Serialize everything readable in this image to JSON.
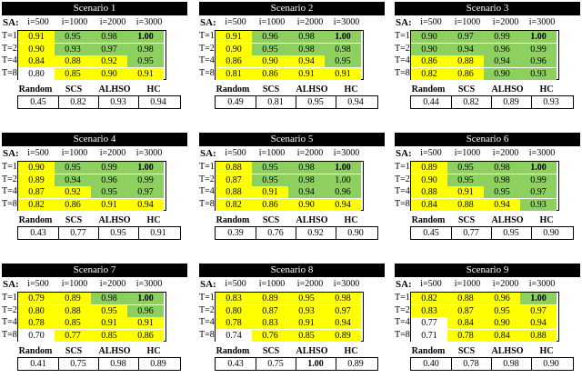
{
  "colors": {
    "green": "#8dd05f",
    "yellow": "#ffff00",
    "white": "#ffffff"
  },
  "sa_label": "SA:",
  "iter_headers": [
    "i=500",
    "i=1000",
    "i=2000",
    "i=3000"
  ],
  "row_labels": [
    "T=1",
    "T=2",
    "T=4",
    "T=8"
  ],
  "summary_headers": [
    "Random",
    "SCS",
    "ALHSO",
    "HC"
  ],
  "scenarios": [
    {
      "title": "Scenario 1",
      "grid": [
        [
          "0.91",
          "0.95",
          "0.98",
          "1.00"
        ],
        [
          "0.90",
          "0.93",
          "0.97",
          "0.98"
        ],
        [
          "0.84",
          "0.88",
          "0.92",
          "0.95"
        ],
        [
          "0.80",
          "0.85",
          "0.90",
          "0.91"
        ]
      ],
      "colors": [
        [
          "y",
          "g",
          "g",
          "g"
        ],
        [
          "y",
          "g",
          "g",
          "g"
        ],
        [
          "y",
          "y",
          "y",
          "g"
        ],
        [
          "w",
          "y",
          "y",
          "y"
        ]
      ],
      "bold": [
        [
          false,
          false,
          false,
          true
        ],
        [
          false,
          false,
          false,
          false
        ],
        [
          false,
          false,
          false,
          false
        ],
        [
          false,
          false,
          false,
          false
        ]
      ],
      "summary": [
        "0.45",
        "0.82",
        "0.93",
        "0.94"
      ],
      "summary_bold": [
        false,
        false,
        false,
        false
      ]
    },
    {
      "title": "Scenario 2",
      "grid": [
        [
          "0.91",
          "0.96",
          "0.98",
          "1.00"
        ],
        [
          "0.90",
          "0.95",
          "0.98",
          "0.98"
        ],
        [
          "0.86",
          "0.90",
          "0.94",
          "0.95"
        ],
        [
          "0.81",
          "0.86",
          "0.91",
          "0.91"
        ]
      ],
      "colors": [
        [
          "y",
          "g",
          "g",
          "g"
        ],
        [
          "y",
          "g",
          "g",
          "g"
        ],
        [
          "y",
          "y",
          "y",
          "g"
        ],
        [
          "y",
          "y",
          "y",
          "y"
        ]
      ],
      "bold": [
        [
          false,
          false,
          false,
          true
        ],
        [
          false,
          false,
          false,
          false
        ],
        [
          false,
          false,
          false,
          false
        ],
        [
          false,
          false,
          false,
          false
        ]
      ],
      "summary": [
        "0.49",
        "0.81",
        "0.95",
        "0.94"
      ],
      "summary_bold": [
        false,
        false,
        false,
        false
      ]
    },
    {
      "title": "Scenario 3",
      "grid": [
        [
          "0.90",
          "0.97",
          "0.99",
          "1.00"
        ],
        [
          "0.90",
          "0.94",
          "0.96",
          "0.99"
        ],
        [
          "0.86",
          "0.88",
          "0.94",
          "0.96"
        ],
        [
          "0.82",
          "0.86",
          "0.90",
          "0.93"
        ]
      ],
      "colors": [
        [
          "g",
          "g",
          "g",
          "g"
        ],
        [
          "g",
          "g",
          "g",
          "g"
        ],
        [
          "y",
          "y",
          "g",
          "g"
        ],
        [
          "y",
          "y",
          "g",
          "g"
        ]
      ],
      "bold": [
        [
          false,
          false,
          false,
          true
        ],
        [
          false,
          false,
          false,
          false
        ],
        [
          false,
          false,
          false,
          false
        ],
        [
          false,
          false,
          false,
          false
        ]
      ],
      "summary": [
        "0.44",
        "0.82",
        "0.89",
        "0.93"
      ],
      "summary_bold": [
        false,
        false,
        false,
        false
      ]
    },
    {
      "title": "Scenario 4",
      "grid": [
        [
          "0.90",
          "0.95",
          "0.99",
          "1.00"
        ],
        [
          "0.89",
          "0.94",
          "0.96",
          "0.99"
        ],
        [
          "0.87",
          "0.92",
          "0.95",
          "0.97"
        ],
        [
          "0.82",
          "0.86",
          "0.91",
          "0.94"
        ]
      ],
      "colors": [
        [
          "y",
          "g",
          "g",
          "g"
        ],
        [
          "y",
          "g",
          "g",
          "g"
        ],
        [
          "y",
          "y",
          "g",
          "g"
        ],
        [
          "y",
          "y",
          "y",
          "y"
        ]
      ],
      "bold": [
        [
          false,
          false,
          false,
          true
        ],
        [
          false,
          false,
          false,
          false
        ],
        [
          false,
          false,
          false,
          false
        ],
        [
          false,
          false,
          false,
          false
        ]
      ],
      "summary": [
        "0.43",
        "0.77",
        "0.95",
        "0.91"
      ],
      "summary_bold": [
        false,
        false,
        false,
        false
      ]
    },
    {
      "title": "Scenario 5",
      "grid": [
        [
          "0.88",
          "0.95",
          "0.98",
          "1.00"
        ],
        [
          "0.87",
          "0.95",
          "0.98",
          "1.00"
        ],
        [
          "0.88",
          "0.91",
          "0.94",
          "0.96"
        ],
        [
          "0.82",
          "0.86",
          "0.90",
          "0.94"
        ]
      ],
      "colors": [
        [
          "y",
          "g",
          "g",
          "g"
        ],
        [
          "y",
          "g",
          "g",
          "g"
        ],
        [
          "y",
          "y",
          "g",
          "g"
        ],
        [
          "y",
          "y",
          "y",
          "y"
        ]
      ],
      "bold": [
        [
          false,
          false,
          false,
          true
        ],
        [
          false,
          false,
          false,
          false
        ],
        [
          false,
          false,
          false,
          false
        ],
        [
          false,
          false,
          false,
          false
        ]
      ],
      "summary": [
        "0.39",
        "0.76",
        "0.92",
        "0.90"
      ],
      "summary_bold": [
        false,
        false,
        false,
        false
      ]
    },
    {
      "title": "Scenario 6",
      "grid": [
        [
          "0.89",
          "0.95",
          "0.98",
          "1.00"
        ],
        [
          "0.90",
          "0.95",
          "0.98",
          "0.99"
        ],
        [
          "0.88",
          "0.91",
          "0.95",
          "0.97"
        ],
        [
          "0.84",
          "0.88",
          "0.94",
          "0.93"
        ]
      ],
      "colors": [
        [
          "y",
          "g",
          "g",
          "g"
        ],
        [
          "y",
          "g",
          "g",
          "g"
        ],
        [
          "y",
          "y",
          "g",
          "g"
        ],
        [
          "y",
          "y",
          "y",
          "g"
        ]
      ],
      "bold": [
        [
          false,
          false,
          false,
          true
        ],
        [
          false,
          false,
          false,
          false
        ],
        [
          false,
          false,
          false,
          false
        ],
        [
          false,
          false,
          false,
          false
        ]
      ],
      "summary": [
        "0.45",
        "0.77",
        "0.95",
        "0.90"
      ],
      "summary_bold": [
        false,
        false,
        false,
        false
      ]
    },
    {
      "title": "Scenario 7",
      "grid": [
        [
          "0.79",
          "0.89",
          "0.98",
          "1.00"
        ],
        [
          "0.80",
          "0.88",
          "0.95",
          "0.96"
        ],
        [
          "0.78",
          "0.85",
          "0.91",
          "0.91"
        ],
        [
          "0.70",
          "0.77",
          "0.85",
          "0.86"
        ]
      ],
      "colors": [
        [
          "y",
          "y",
          "g",
          "g"
        ],
        [
          "y",
          "y",
          "y",
          "g"
        ],
        [
          "y",
          "y",
          "y",
          "y"
        ],
        [
          "w",
          "y",
          "y",
          "y"
        ]
      ],
      "bold": [
        [
          false,
          false,
          false,
          true
        ],
        [
          false,
          false,
          false,
          false
        ],
        [
          false,
          false,
          false,
          false
        ],
        [
          false,
          false,
          false,
          false
        ]
      ],
      "summary": [
        "0.41",
        "0.75",
        "0.98",
        "0.89"
      ],
      "summary_bold": [
        false,
        false,
        false,
        false
      ]
    },
    {
      "title": "Scenario 8",
      "grid": [
        [
          "0.83",
          "0.89",
          "0.95",
          "0.98"
        ],
        [
          "0.80",
          "0.87",
          "0.93",
          "0.97"
        ],
        [
          "0.78",
          "0.83",
          "0.91",
          "0.94"
        ],
        [
          "0.74",
          "0.76",
          "0.85",
          "0.89"
        ]
      ],
      "colors": [
        [
          "y",
          "y",
          "y",
          "y"
        ],
        [
          "y",
          "y",
          "y",
          "y"
        ],
        [
          "y",
          "y",
          "y",
          "y"
        ],
        [
          "w",
          "y",
          "y",
          "y"
        ]
      ],
      "bold": [
        [
          false,
          false,
          false,
          false
        ],
        [
          false,
          false,
          false,
          false
        ],
        [
          false,
          false,
          false,
          false
        ],
        [
          false,
          false,
          false,
          false
        ]
      ],
      "summary": [
        "0.43",
        "0.75",
        "1.00",
        "0.89"
      ],
      "summary_bold": [
        false,
        false,
        true,
        false
      ]
    },
    {
      "title": "Scenario 9",
      "grid": [
        [
          "0.82",
          "0.88",
          "0.96",
          "1.00"
        ],
        [
          "0.83",
          "0.87",
          "0.95",
          "0.97"
        ],
        [
          "0.77",
          "0.84",
          "0.90",
          "0.94"
        ],
        [
          "0.71",
          "0.78",
          "0.84",
          "0.88"
        ]
      ],
      "colors": [
        [
          "y",
          "y",
          "y",
          "g"
        ],
        [
          "y",
          "y",
          "y",
          "y"
        ],
        [
          "w",
          "y",
          "y",
          "y"
        ],
        [
          "w",
          "y",
          "y",
          "y"
        ]
      ],
      "bold": [
        [
          false,
          false,
          false,
          true
        ],
        [
          false,
          false,
          false,
          false
        ],
        [
          false,
          false,
          false,
          false
        ],
        [
          false,
          false,
          false,
          false
        ]
      ],
      "summary": [
        "0.40",
        "0.78",
        "0.98",
        "0.90"
      ],
      "summary_bold": [
        false,
        false,
        false,
        false
      ]
    }
  ]
}
